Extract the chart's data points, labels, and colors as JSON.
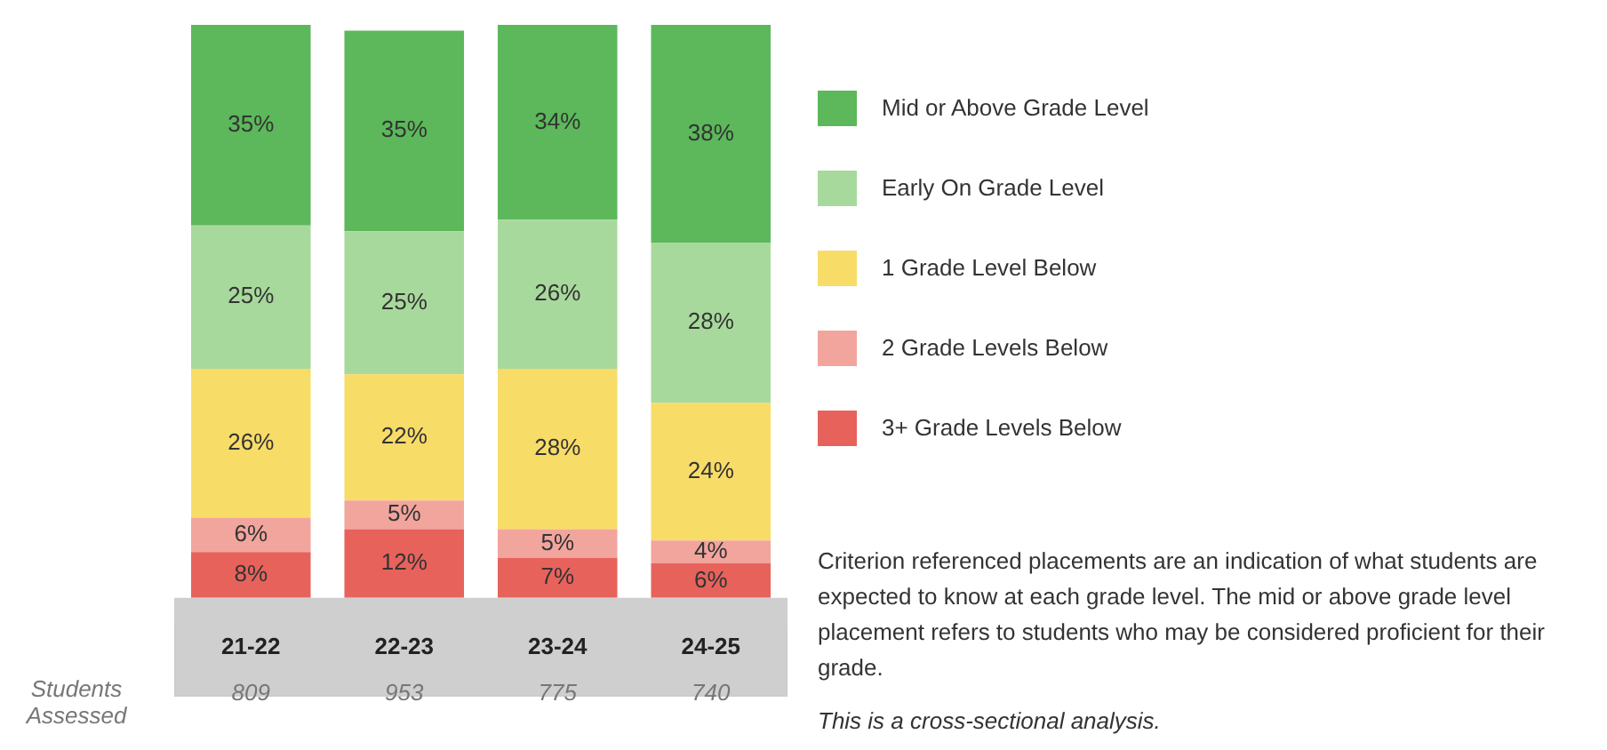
{
  "chart_data": {
    "type": "bar",
    "stacked": true,
    "categories": [
      "21-22",
      "22-23",
      "23-24",
      "24-25"
    ],
    "series": [
      {
        "name": "3+ Grade Levels Below",
        "color": "#e8625c",
        "values": [
          8,
          12,
          7,
          6
        ],
        "value_labels": [
          "8%",
          "12%",
          "7%",
          "6%"
        ]
      },
      {
        "name": "2 Grade Levels Below",
        "color": "#f2a59d",
        "values": [
          6,
          5,
          5,
          4
        ],
        "value_labels": [
          "6%",
          "5%",
          "5%",
          "4%"
        ]
      },
      {
        "name": "1 Grade Level Below",
        "color": "#f8dc68",
        "values": [
          26,
          22,
          28,
          24
        ],
        "value_labels": [
          "26%",
          "22%",
          "28%",
          "24%"
        ]
      },
      {
        "name": "Early On Grade Level",
        "color": "#a8d99c",
        "values": [
          25,
          25,
          26,
          28
        ],
        "value_labels": [
          "25%",
          "25%",
          "26%",
          "28%"
        ]
      },
      {
        "name": "Mid or Above Grade Level",
        "color": "#5cb85a",
        "values": [
          35,
          35,
          34,
          38
        ],
        "value_labels": [
          "35%",
          "35%",
          "34%",
          "38%"
        ]
      }
    ],
    "legend": "right",
    "grid": false,
    "annotations": [
      "Students Assessed",
      "809",
      "953",
      "775",
      "740",
      "Criterion referenced placements are an indication of what students are expected to know at each grade level. The mid or above grade level placement refers to students who may be considered proficient for their grade.",
      "This is a cross-sectional analysis."
    ]
  }
}
